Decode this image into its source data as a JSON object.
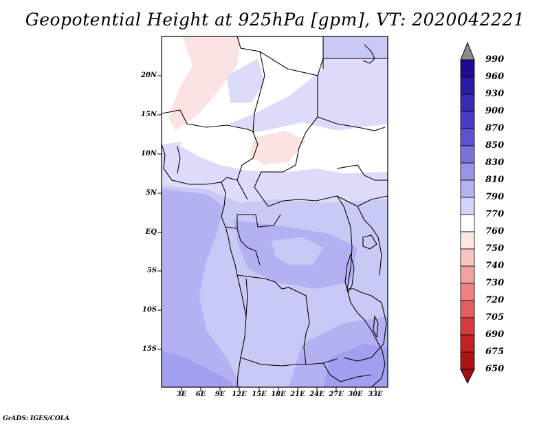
{
  "title": "Geopotential Height at 925hPa [gpm], VT: 2020042221",
  "credit": "GrADS: IGES/COLA",
  "map": {
    "variable": "Geopotential Height",
    "level": "925hPa",
    "units": "gpm",
    "valid_time": "2020042221",
    "lat_labels": [
      "20N",
      "15N",
      "10N",
      "5N",
      "EQ",
      "5S",
      "10S",
      "15S"
    ],
    "lon_labels": [
      "3E",
      "6E",
      "9E",
      "12E",
      "15E",
      "18E",
      "21E",
      "24E",
      "27E",
      "30E",
      "33E"
    ]
  },
  "colorbar": {
    "labels": [
      "990",
      "960",
      "930",
      "900",
      "870",
      "850",
      "830",
      "810",
      "790",
      "770",
      "760",
      "750",
      "740",
      "730",
      "720",
      "705",
      "690",
      "675",
      "650"
    ],
    "colors": [
      "#8a8a8a",
      "#1e0a96",
      "#2a1aa8",
      "#3a2ab8",
      "#4a3ac6",
      "#5e52d2",
      "#7b72de",
      "#9a93e8",
      "#b6b2f0",
      "#d4d2f8",
      "#ffffff",
      "#fde6e6",
      "#f8c4c4",
      "#f3a2a2",
      "#ec8282",
      "#e45c5c",
      "#d63a3a",
      "#c42222",
      "#ad1414",
      "#a01010"
    ]
  },
  "fill_colors": {
    "white": "#ffffff",
    "pink": "#fbe3e3",
    "lav1": "#dcdcfa",
    "lav2": "#c9c9f6",
    "lav3": "#b3b1f2",
    "lav4": "#a29ff0"
  }
}
